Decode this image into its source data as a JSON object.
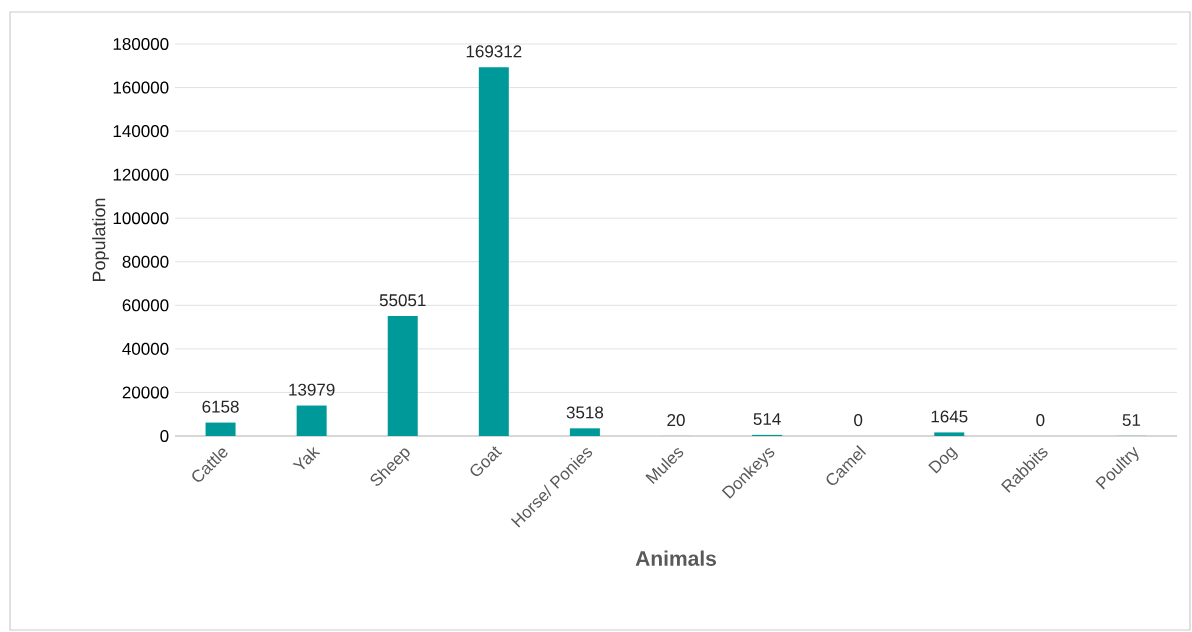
{
  "chart_data": {
    "type": "bar",
    "xlabel": "Animals",
    "ylabel": "Population",
    "categories": [
      "Cattle",
      "Yak",
      "Sheep",
      "Goat",
      "Horse/ Ponies",
      "Mules",
      "Donkeys",
      "Camel",
      "Dog",
      "Rabbits",
      "Poultry"
    ],
    "values": [
      6158,
      13979,
      55051,
      169312,
      3518,
      20,
      514,
      0,
      1645,
      0,
      51
    ],
    "color": "#009999",
    "ylim": [
      0,
      180000
    ],
    "yticks": [
      0,
      20000,
      40000,
      60000,
      80000,
      100000,
      120000,
      140000,
      160000,
      180000
    ],
    "grid": "y",
    "data_labels": true
  }
}
